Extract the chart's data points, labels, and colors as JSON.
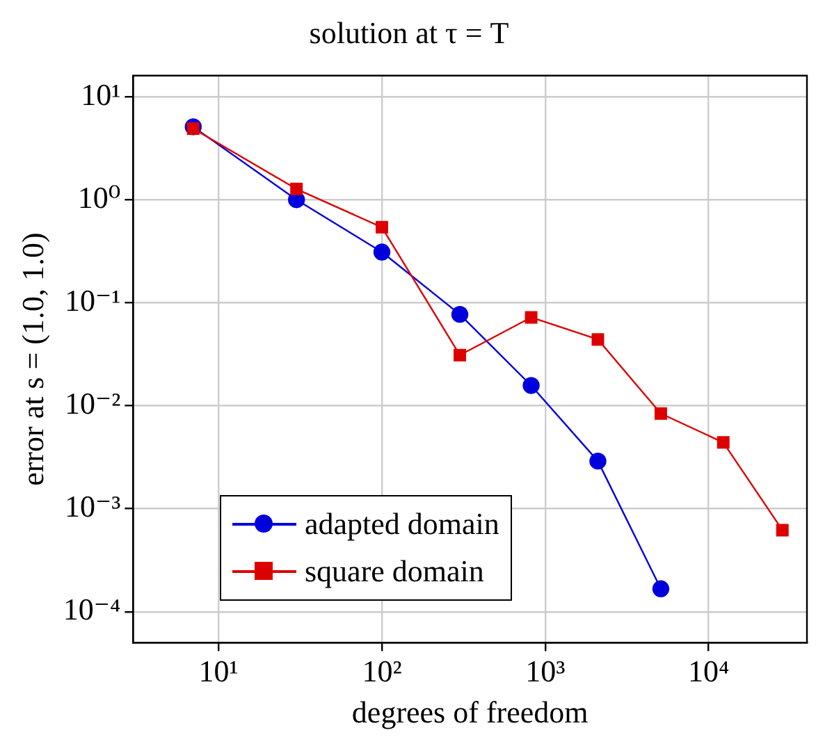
{
  "chart_data": {
    "type": "line",
    "title": "solution at τ = T",
    "xlabel": "degrees of freedom",
    "ylabel": "error at s = (1.0, 1.0)",
    "log": "xy",
    "grid": true,
    "legend": "bottom left",
    "xlim": [
      3,
      40000
    ],
    "xticks": [
      {
        "value": 10,
        "label": "10¹"
      },
      {
        "value": 100,
        "label": "10²"
      },
      {
        "value": 1000,
        "label": "10³"
      },
      {
        "value": 10000,
        "label": "10⁴"
      }
    ],
    "ylim": [
      5e-05,
      16
    ],
    "yticks": [
      {
        "value": 0.0001,
        "label": "10⁻⁴"
      },
      {
        "value": 0.001,
        "label": "10⁻³"
      },
      {
        "value": 0.01,
        "label": "10⁻²"
      },
      {
        "value": 0.1,
        "label": "10⁻¹"
      },
      {
        "value": 1,
        "label": "10⁰"
      },
      {
        "value": 10,
        "label": "10¹"
      }
    ],
    "series": [
      {
        "name": "adapted domain",
        "color": "#0000dd",
        "marker": "circle",
        "x": [
          7,
          30,
          100,
          300,
          820,
          2100,
          5100
        ],
        "values": [
          5.1,
          1.0,
          0.31,
          0.077,
          0.0157,
          0.0029,
          0.000167
        ]
      },
      {
        "name": "square domain",
        "color": "#dd0000",
        "marker": "square",
        "x": [
          7,
          30,
          100,
          300,
          820,
          2100,
          5100,
          12300,
          28300
        ],
        "values": [
          4.9,
          1.27,
          0.54,
          0.031,
          0.072,
          0.044,
          0.0084,
          0.0044,
          0.00062
        ]
      }
    ]
  }
}
